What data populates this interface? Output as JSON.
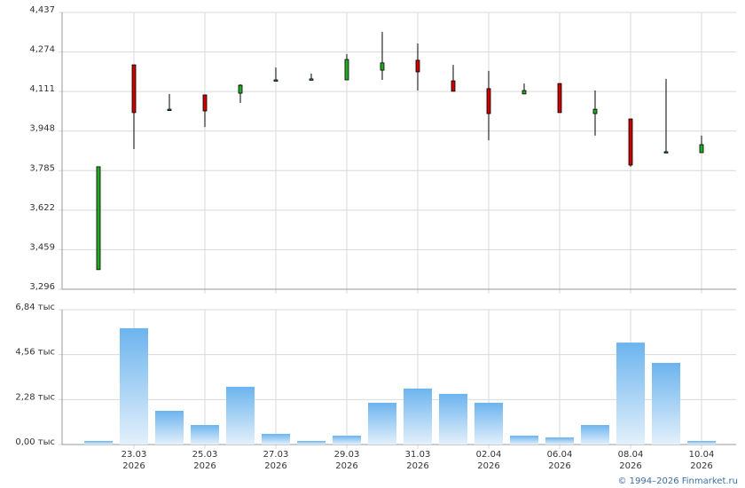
{
  "chart_data": [
    {
      "type": "candlestick",
      "ylim": [
        3.296,
        4.437
      ],
      "yticks": [
        {
          "value": 3.296,
          "label": "3,296"
        },
        {
          "value": 3.459,
          "label": "3,459"
        },
        {
          "value": 3.622,
          "label": "3,622"
        },
        {
          "value": 3.785,
          "label": "3,785"
        },
        {
          "value": 3.948,
          "label": "3,948"
        },
        {
          "value": 4.111,
          "label": "4,111"
        },
        {
          "value": 4.274,
          "label": "4,274"
        },
        {
          "value": 4.437,
          "label": "4,437"
        }
      ],
      "grid": true,
      "up_color": "#22a822",
      "down_color": "#cc0000",
      "open": [
        3.377,
        4.221,
        4.038,
        4.097,
        4.104,
        4.159,
        4.163,
        4.159,
        4.199,
        4.24,
        4.155,
        4.123,
        4.101,
        4.144,
        4.02,
        3.998,
        3.863,
        3.859
      ],
      "high": [
        3.801,
        4.221,
        4.101,
        4.097,
        4.141,
        4.21,
        4.185,
        4.265,
        4.357,
        4.309,
        4.221,
        4.196,
        4.144,
        4.144,
        4.115,
        3.998,
        4.163,
        3.929
      ],
      "low": [
        3.377,
        3.874,
        4.038,
        3.965,
        4.064,
        4.159,
        4.163,
        4.159,
        4.159,
        4.115,
        4.112,
        3.91,
        4.101,
        4.024,
        3.929,
        3.801,
        3.859,
        3.859
      ],
      "close": [
        3.801,
        4.024,
        4.038,
        4.031,
        4.137,
        4.159,
        4.163,
        4.243,
        4.229,
        4.192,
        4.112,
        4.02,
        4.115,
        4.024,
        4.038,
        3.808,
        3.863,
        3.892
      ]
    },
    {
      "type": "bar",
      "categories": [
        null,
        [
          "23.03",
          "2026"
        ],
        null,
        [
          "25.03",
          "2026"
        ],
        null,
        [
          "27.03",
          "2026"
        ],
        null,
        [
          "29.03",
          "2026"
        ],
        null,
        [
          "31.03",
          "2026"
        ],
        null,
        [
          "02.04",
          "2026"
        ],
        null,
        [
          "06.04",
          "2026"
        ],
        null,
        [
          "08.04",
          "2026"
        ],
        null,
        [
          "10.04",
          "2026"
        ]
      ],
      "values": [
        0.18,
        5.9,
        1.71,
        0.99,
        2.93,
        0.54,
        0.18,
        0.45,
        2.12,
        2.84,
        2.57,
        2.12,
        0.45,
        0.36,
        0.99,
        5.17,
        4.14,
        0.18
      ],
      "ylim": [
        0,
        6.84
      ],
      "yticks": [
        {
          "value": 0,
          "label": "0,00 тыс"
        },
        {
          "value": 2.28,
          "label": "2,28 тыс"
        },
        {
          "value": 4.56,
          "label": "4,56 тыс"
        },
        {
          "value": 6.84,
          "label": "6,84 тыс"
        }
      ],
      "grid": true,
      "color": "#6cb4ee"
    }
  ],
  "source": "© 1994–2026 Finmarket.ru"
}
